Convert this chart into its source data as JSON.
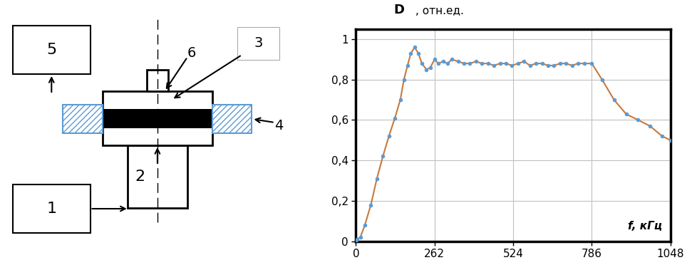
{
  "line_color": "#c8783c",
  "dot_color": "#5b9bd5",
  "hatch_color": "#5b9bd5",
  "bg_color": "#ffffff",
  "grid_color": "#c0c0c0",
  "xlim": [
    0,
    1048
  ],
  "ylim": [
    0,
    1.05
  ],
  "xticks": [
    0,
    262,
    524,
    786,
    1048
  ],
  "yticks": [
    0,
    0.2,
    0.4,
    0.6,
    0.8,
    1
  ],
  "ytick_labels": [
    "0",
    "0,2",
    "0,4",
    "0,6",
    "0,8",
    "1"
  ],
  "x_data": [
    0,
    5,
    15,
    30,
    50,
    70,
    90,
    110,
    130,
    148,
    160,
    172,
    183,
    196,
    208,
    220,
    235,
    248,
    262,
    275,
    290,
    305,
    320,
    340,
    360,
    380,
    400,
    420,
    440,
    460,
    480,
    500,
    520,
    540,
    560,
    580,
    600,
    620,
    640,
    660,
    680,
    700,
    720,
    740,
    760,
    786,
    820,
    860,
    900,
    940,
    980,
    1020,
    1048
  ],
  "y_data": [
    0.0,
    0.01,
    0.02,
    0.08,
    0.18,
    0.31,
    0.42,
    0.52,
    0.61,
    0.7,
    0.8,
    0.87,
    0.93,
    0.96,
    0.93,
    0.88,
    0.85,
    0.86,
    0.9,
    0.88,
    0.89,
    0.88,
    0.9,
    0.89,
    0.88,
    0.88,
    0.89,
    0.88,
    0.88,
    0.87,
    0.88,
    0.88,
    0.87,
    0.88,
    0.89,
    0.87,
    0.88,
    0.88,
    0.87,
    0.87,
    0.88,
    0.88,
    0.87,
    0.88,
    0.88,
    0.88,
    0.8,
    0.7,
    0.63,
    0.6,
    0.57,
    0.52,
    0.5
  ]
}
